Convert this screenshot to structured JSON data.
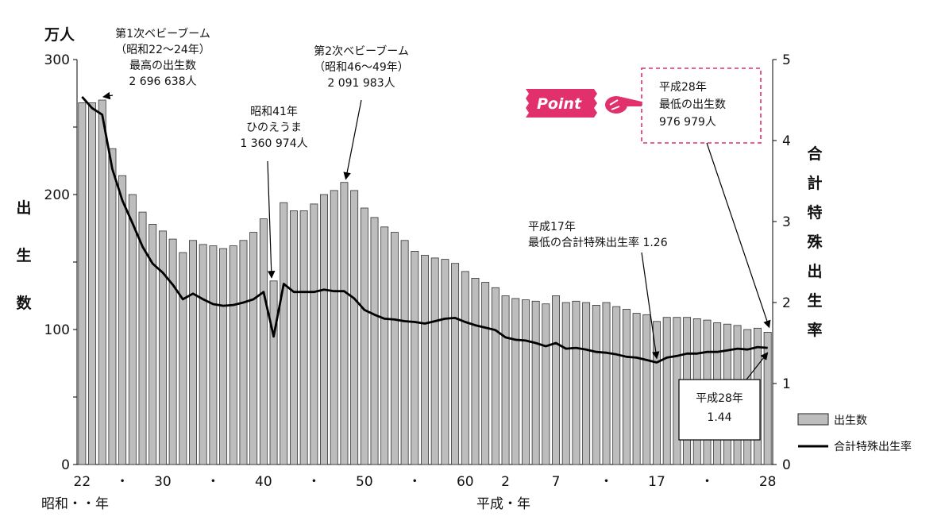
{
  "chart_data": {
    "type": "bar",
    "left_unit": "万人",
    "left_axis_label": "出生数",
    "right_axis_label": "合計特殊出生率",
    "left_ylim": [
      0,
      300
    ],
    "left_ticks": [
      "0",
      "100",
      "200",
      "300"
    ],
    "right_ylim": [
      0,
      5
    ],
    "right_ticks": [
      "0",
      "1",
      "2",
      "3",
      "4",
      "5"
    ],
    "x_tick_labels": [
      {
        "i": 0,
        "text": "22"
      },
      {
        "i": 4,
        "text": "・"
      },
      {
        "i": 8,
        "text": "30"
      },
      {
        "i": 13,
        "text": "・"
      },
      {
        "i": 18,
        "text": "40"
      },
      {
        "i": 23,
        "text": "・"
      },
      {
        "i": 28,
        "text": "50"
      },
      {
        "i": 33,
        "text": "・"
      },
      {
        "i": 38,
        "text": "60"
      },
      {
        "i": 42,
        "text": "2"
      },
      {
        "i": 47,
        "text": "7"
      },
      {
        "i": 52,
        "text": "・"
      },
      {
        "i": 57,
        "text": "17"
      },
      {
        "i": 62,
        "text": "・"
      },
      {
        "i": 68,
        "text": "28"
      }
    ],
    "era_showa": "昭和・・年",
    "era_heisei": "平成・年",
    "series": [
      {
        "name": "出生数",
        "type": "bar",
        "values": [
          268,
          268,
          270,
          234,
          214,
          200,
          187,
          178,
          173,
          167,
          157,
          166,
          163,
          162,
          160,
          162,
          166,
          172,
          182,
          136,
          194,
          188,
          188,
          193,
          200,
          203,
          209,
          203,
          190,
          183,
          176,
          172,
          166,
          158,
          155,
          153,
          152,
          149,
          143,
          138,
          135,
          131,
          125,
          123,
          122,
          121,
          119,
          125,
          120,
          121,
          120,
          118,
          120,
          117,
          115,
          112,
          111,
          106,
          109,
          109,
          109,
          108,
          107,
          105,
          104,
          103,
          100,
          101,
          98
        ],
        "color": "#bdbdbd"
      },
      {
        "name": "合計特殊出生率",
        "type": "line",
        "values": [
          4.54,
          4.4,
          4.32,
          3.65,
          3.26,
          2.98,
          2.69,
          2.48,
          2.37,
          2.22,
          2.04,
          2.11,
          2.04,
          1.98,
          1.96,
          1.97,
          2.0,
          2.04,
          2.13,
          1.58,
          2.23,
          2.13,
          2.13,
          2.13,
          2.16,
          2.14,
          2.14,
          2.05,
          1.91,
          1.85,
          1.8,
          1.79,
          1.77,
          1.76,
          1.74,
          1.77,
          1.8,
          1.81,
          1.76,
          1.72,
          1.69,
          1.66,
          1.57,
          1.54,
          1.53,
          1.5,
          1.46,
          1.5,
          1.43,
          1.44,
          1.42,
          1.39,
          1.38,
          1.36,
          1.33,
          1.32,
          1.29,
          1.26,
          1.32,
          1.34,
          1.37,
          1.37,
          1.39,
          1.39,
          1.41,
          1.43,
          1.42,
          1.45,
          1.44
        ],
        "color": "#000000"
      }
    ],
    "annotations": [
      {
        "key": "boom1",
        "lines": [
          "第1次ベビーブーム",
          "（昭和22～24年）",
          "最高の出生数",
          "2 696 638人"
        ]
      },
      {
        "key": "hinoeuma",
        "lines": [
          "昭和41年",
          "ひのえうま",
          "1 360 974人"
        ]
      },
      {
        "key": "boom2",
        "lines": [
          "第2次ベビーブーム",
          "（昭和46～49年）",
          "2 091 983人"
        ]
      },
      {
        "key": "h17",
        "lines": [
          "平成17年",
          "最低の合計特殊出生率 1.26"
        ]
      },
      {
        "key": "h28births",
        "lines": [
          "平成28年",
          "最低の出生数",
          "976 979人"
        ]
      },
      {
        "key": "h28rate",
        "lines": [
          "平成28年",
          "1.44"
        ]
      }
    ],
    "point_badge": "Point"
  }
}
